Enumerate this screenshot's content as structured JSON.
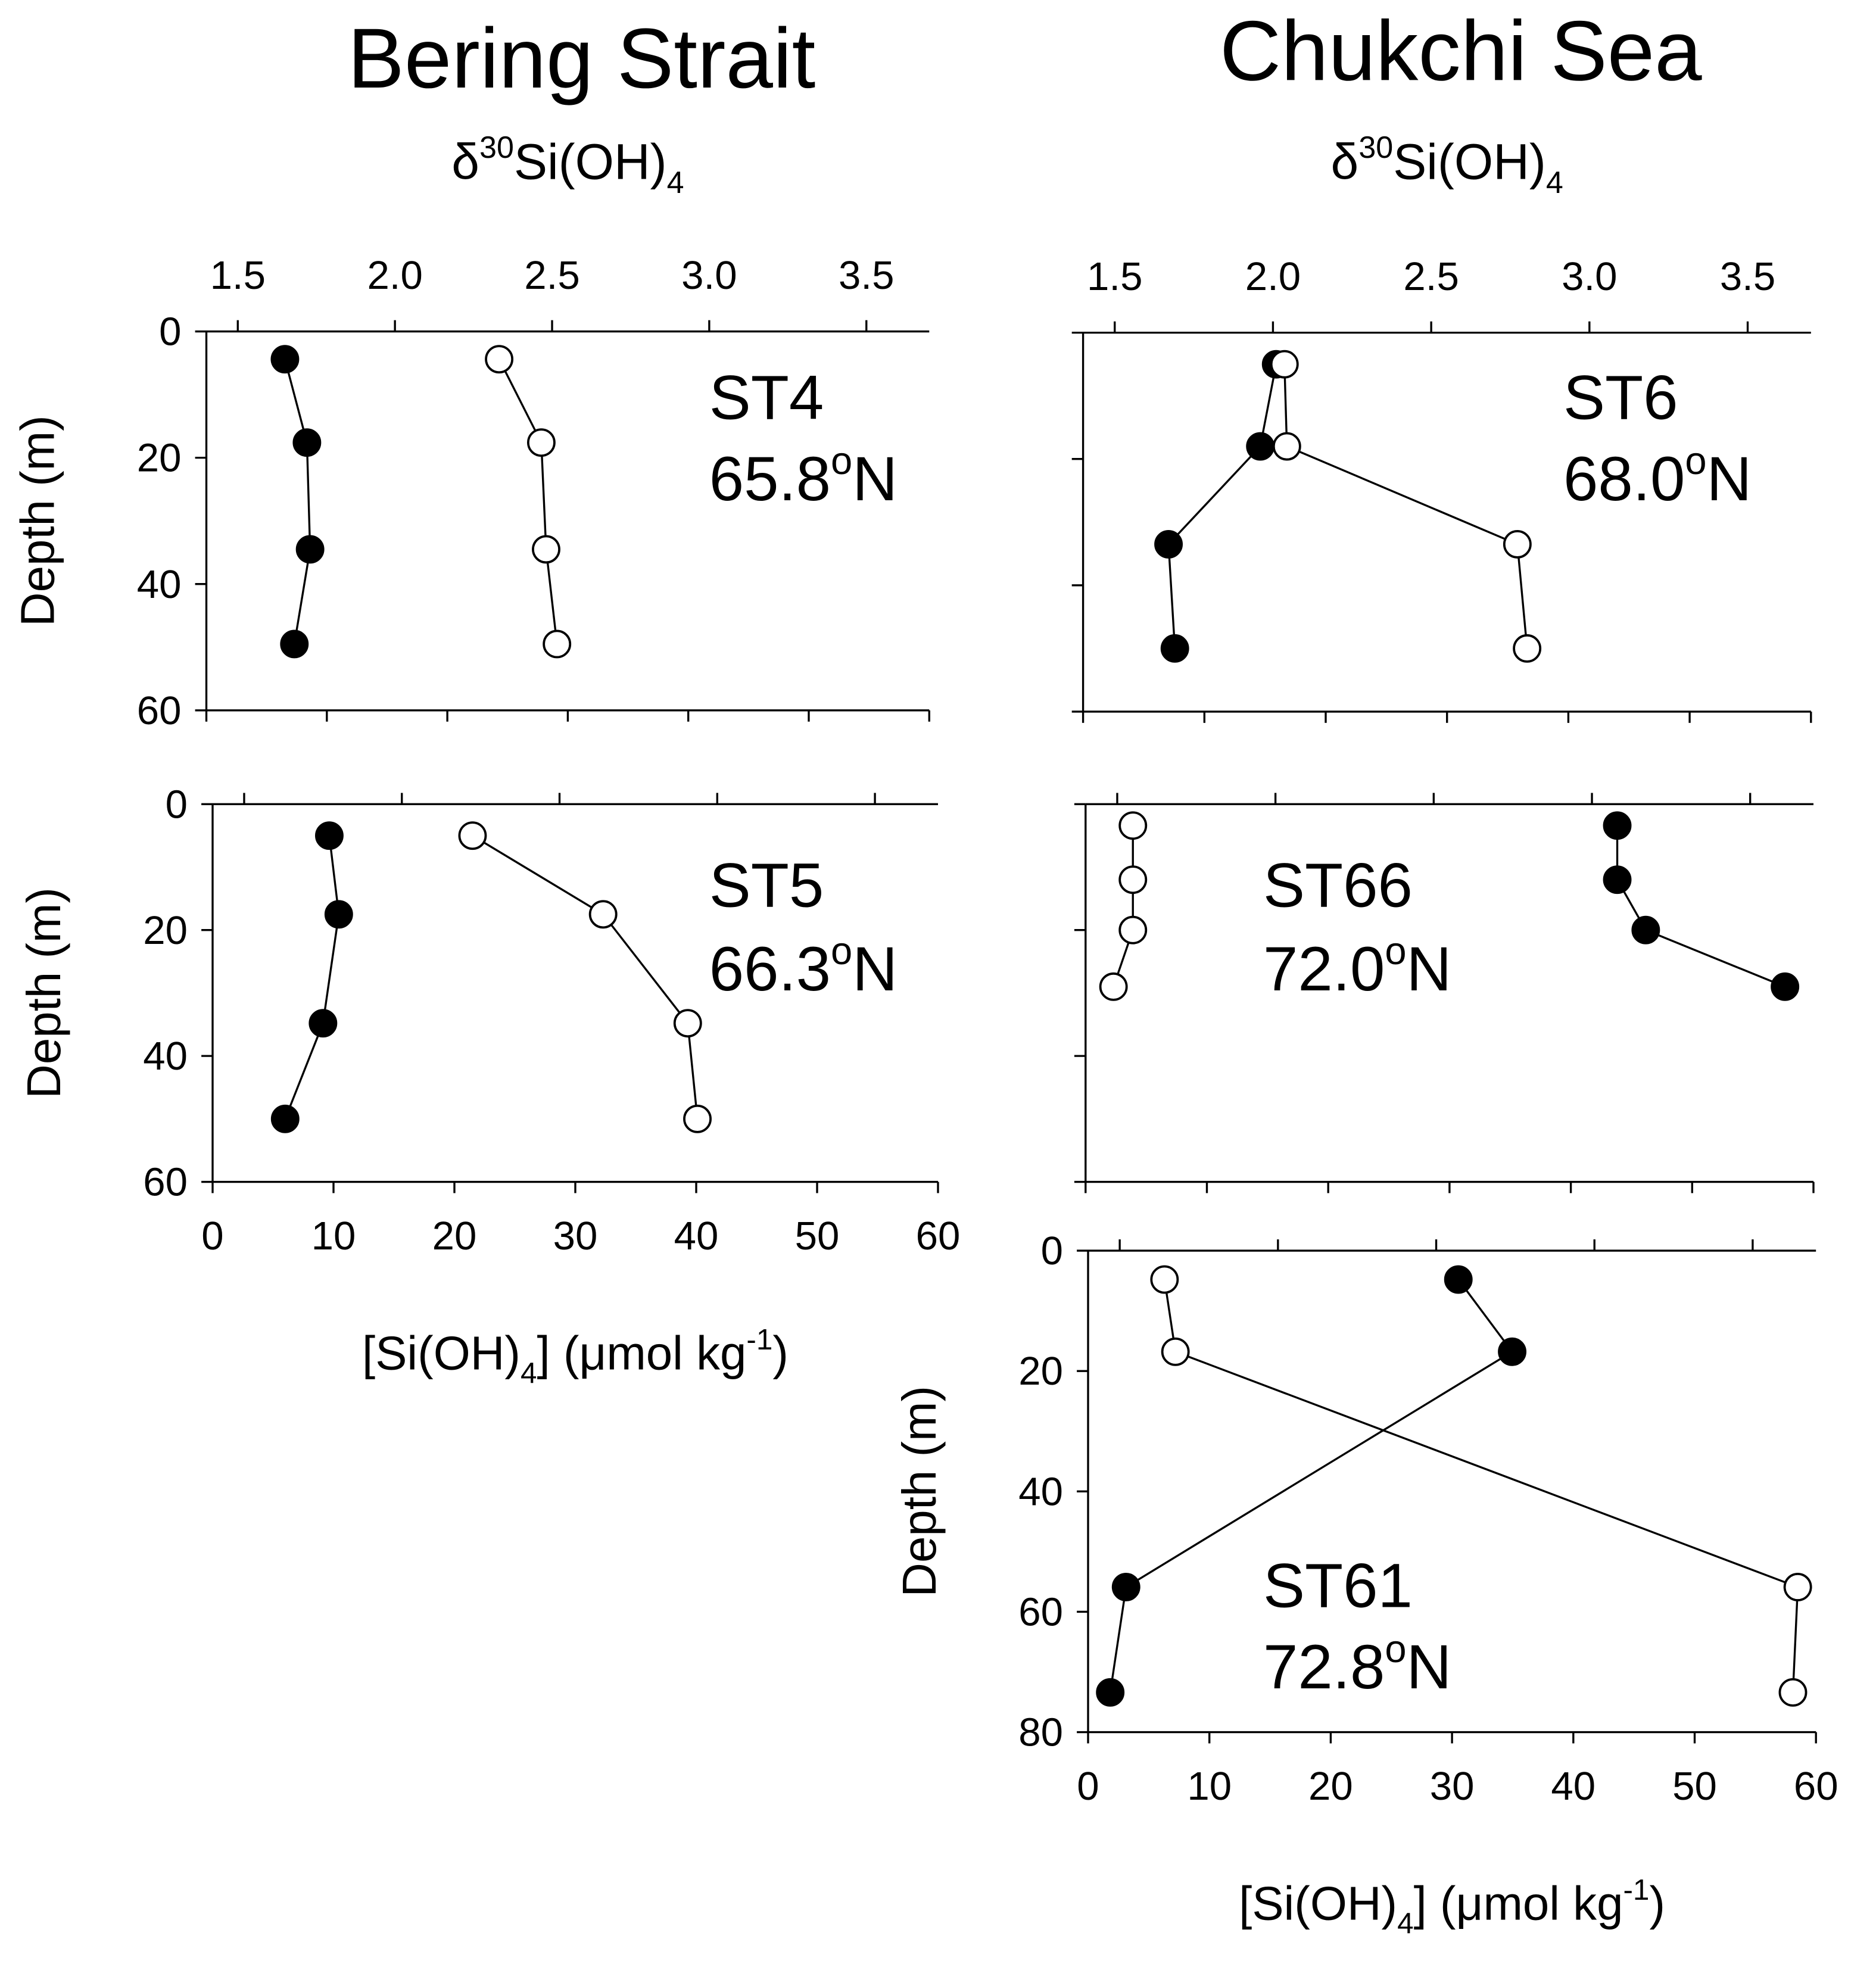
{
  "column_titles": [
    "Bering Strait",
    "Chukchi Sea"
  ],
  "chart_data": [
    {
      "type": "line",
      "station": "ST4",
      "latitude": [
        "65.8",
        "o",
        "N"
      ],
      "ylabel": "Depth (m)",
      "ylim": [
        0,
        60
      ],
      "yticks": [
        0,
        20,
        40,
        60
      ],
      "y_inverted": true,
      "x2label": [
        "δ",
        "30",
        "Si(OH)",
        "4"
      ],
      "x2lim": [
        1.4,
        3.7
      ],
      "x2ticks": [
        1.5,
        {
          "value": 2,
          "label": "2.0"
        },
        2.5,
        {
          "value": 3,
          "label": "3.0"
        },
        3.5
      ],
      "series": [
        {
          "marker": "filled",
          "color": "#000000",
          "axis": "x2",
          "x": [
            1.65,
            1.72,
            1.73,
            1.68
          ],
          "y": [
            4.4,
            17.6,
            34.5,
            49.5
          ]
        },
        {
          "marker": "open",
          "color": "#000000",
          "axis": "x",
          "x": [
            24.3,
            27.8,
            28.2,
            29.1
          ],
          "y": [
            4.4,
            17.6,
            34.5,
            49.5
          ]
        }
      ]
    },
    {
      "type": "line",
      "station": "ST5",
      "latitude": [
        "66.3",
        "o",
        "N"
      ],
      "ylabel": "Depth (m)",
      "ylim": [
        0,
        60
      ],
      "yticks": [
        0,
        20,
        40,
        60
      ],
      "y_inverted": true,
      "xlabel": [
        "[Si(OH)",
        "4",
        "] (μmol kg",
        "-1",
        ")"
      ],
      "xlim": [
        0,
        60
      ],
      "xticks": [
        0,
        10,
        20,
        30,
        40,
        50,
        60
      ],
      "series": [
        {
          "marker": "filled",
          "color": "#000000",
          "axis": "x2",
          "x": [
            1.77,
            1.8,
            1.75,
            1.63
          ],
          "y": [
            5,
            17.5,
            34.8,
            50
          ]
        },
        {
          "marker": "open",
          "color": "#000000",
          "axis": "x",
          "x": [
            21.5,
            32.3,
            39.3,
            40.1
          ],
          "y": [
            5,
            17.5,
            34.8,
            50
          ]
        }
      ]
    },
    {
      "type": "line",
      "station": "ST6",
      "latitude": [
        "68.0",
        "o",
        "N"
      ],
      "y_inverted": true,
      "x2label": [
        "δ",
        "30",
        "Si(OH)",
        "4"
      ],
      "x2lim": [
        1.4,
        3.7
      ],
      "x2ticks": [
        1.5,
        {
          "value": 2,
          "label": "2.0"
        },
        2.5,
        {
          "value": 3,
          "label": "3.0"
        },
        3.5
      ],
      "series": [
        {
          "marker": "filled",
          "color": "#000000",
          "axis": "x2",
          "x": [
            2.01,
            1.96,
            1.67,
            1.69
          ],
          "y": [
            5,
            18,
            33.5,
            50
          ]
        },
        {
          "marker": "open",
          "color": "#000000",
          "axis": "x",
          "x": [
            16.6,
            16.8,
            35.8,
            36.6
          ],
          "y": [
            5,
            18,
            33.5,
            50
          ]
        }
      ]
    },
    {
      "type": "line",
      "station": "ST66",
      "latitude": [
        "72.0",
        "o",
        "N"
      ],
      "y_inverted": true,
      "series": [
        {
          "marker": "filled",
          "color": "#000000",
          "axis": "x2",
          "x": [
            3.08,
            3.08,
            3.17,
            3.61
          ],
          "y": [
            3.4,
            12,
            20,
            29
          ]
        },
        {
          "marker": "open",
          "color": "#000000",
          "axis": "x",
          "x": [
            3.9,
            3.9,
            3.9,
            2.3
          ],
          "y": [
            3.4,
            12,
            20,
            29
          ]
        }
      ]
    },
    {
      "type": "line",
      "station": "ST61",
      "latitude": [
        "72.8",
        "o",
        "N"
      ],
      "ylabel": "Depth (m)",
      "ylim": [
        0,
        80
      ],
      "yticks": [
        0,
        20,
        40,
        60,
        80
      ],
      "y_inverted": true,
      "xlabel": [
        "[Si(OH)",
        "4",
        "] (μmol kg",
        "-1",
        ")"
      ],
      "xlim": [
        0,
        60
      ],
      "xticks": [
        0,
        10,
        20,
        30,
        40,
        50,
        60
      ],
      "series": [
        {
          "marker": "filled",
          "color": "#000000",
          "axis": "x2",
          "x": [
            2.57,
            2.74,
            1.52,
            1.47
          ],
          "y": [
            4.8,
            16.8,
            55.9,
            73.4
          ]
        },
        {
          "marker": "open",
          "color": "#000000",
          "axis": "x",
          "x": [
            6.3,
            7.2,
            58.5,
            58.1
          ],
          "y": [
            4.8,
            16.8,
            55.9,
            73.4
          ]
        }
      ]
    }
  ]
}
